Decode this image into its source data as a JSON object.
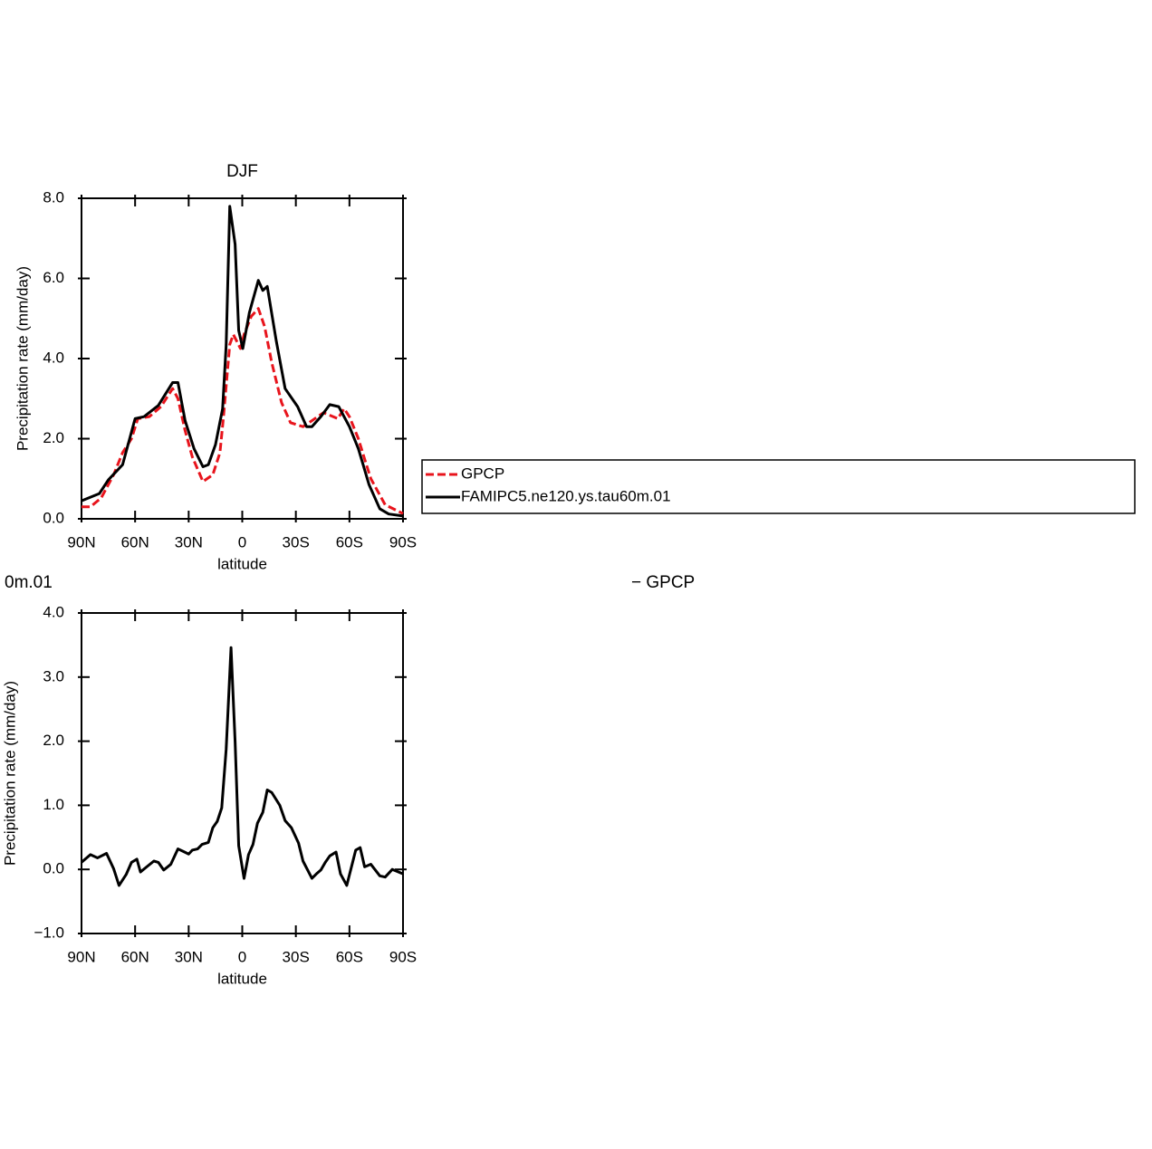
{
  "chart_data": [
    {
      "type": "line",
      "title": "DJF",
      "xlabel": "latitude",
      "ylabel": "Precipitation rate (mm/day)",
      "xlim": [
        90,
        -90
      ],
      "ylim": [
        0,
        8
      ],
      "xticks": [
        {
          "value": 90,
          "label": "90N"
        },
        {
          "value": 60,
          "label": "60N"
        },
        {
          "value": 30,
          "label": "30N"
        },
        0,
        {
          "value": -30,
          "label": "30S"
        },
        {
          "value": -60,
          "label": "60S"
        },
        {
          "value": -90,
          "label": "90S"
        }
      ],
      "yticks": [
        {
          "value": 0,
          "label": "0.0"
        },
        {
          "value": 2,
          "label": "2.0"
        },
        {
          "value": 4,
          "label": "4.0"
        },
        {
          "value": 6,
          "label": "6.0"
        },
        {
          "value": 8,
          "label": "8.0"
        }
      ],
      "grid": false,
      "legend": "right",
      "series": [
        {
          "name": "GPCP",
          "color": "#e8141c",
          "dashed": true,
          "x": [
            90,
            85,
            79,
            72,
            67,
            62,
            58.5,
            52,
            45.5,
            39,
            36,
            32,
            28,
            22,
            16.5,
            12.5,
            10.5,
            7,
            5,
            1,
            -1,
            -5,
            -9,
            -12.5,
            -16.5,
            -22,
            -27,
            -34,
            -39,
            -45.5,
            -53.5,
            -57,
            -60,
            -65,
            -69,
            -72,
            -80,
            -90
          ],
          "values": [
            0.3,
            0.3,
            0.52,
            1.1,
            1.65,
            2.0,
            2.5,
            2.55,
            2.8,
            3.25,
            3.0,
            2.2,
            1.55,
            0.93,
            1.1,
            1.65,
            2.55,
            4.35,
            4.6,
            4.25,
            4.6,
            5.05,
            5.25,
            4.8,
            3.9,
            2.9,
            2.4,
            2.3,
            2.45,
            2.65,
            2.5,
            2.75,
            2.55,
            2.0,
            1.42,
            1.0,
            0.35,
            0.13
          ]
        },
        {
          "name": "FAMIPC5.ne120.ys.tau60m.01",
          "color": "#000000",
          "dashed": false,
          "x": [
            90,
            80,
            75,
            67,
            60,
            55,
            47,
            39,
            36,
            32,
            27,
            22,
            19,
            15,
            11,
            9,
            7,
            4,
            2,
            -0.3,
            -4,
            -9,
            -11.5,
            -14,
            -19,
            -24,
            -31,
            -36,
            -39,
            -44,
            -49,
            -54,
            -60,
            -65,
            -71,
            -77,
            -82,
            -90
          ],
          "values": [
            0.45,
            0.63,
            0.97,
            1.35,
            2.5,
            2.55,
            2.83,
            3.4,
            3.4,
            2.45,
            1.75,
            1.3,
            1.35,
            1.85,
            2.75,
            4.35,
            7.8,
            6.85,
            4.7,
            4.25,
            5.15,
            5.95,
            5.7,
            5.8,
            4.45,
            3.25,
            2.8,
            2.3,
            2.3,
            2.55,
            2.85,
            2.8,
            2.3,
            1.75,
            0.85,
            0.25,
            0.12,
            0.07
          ]
        }
      ]
    },
    {
      "type": "line",
      "title_fragments": [
        "0m.01",
        "− GPCP"
      ],
      "xlabel": "latitude",
      "ylabel": "Precipitation rate (mm/day)",
      "xlim": [
        90,
        -90
      ],
      "ylim": [
        -1,
        4
      ],
      "xticks": [
        {
          "value": 90,
          "label": "90N"
        },
        {
          "value": 60,
          "label": "60N"
        },
        {
          "value": 30,
          "label": "30N"
        },
        0,
        {
          "value": -30,
          "label": "30S"
        },
        {
          "value": -60,
          "label": "60S"
        },
        {
          "value": -90,
          "label": "90S"
        }
      ],
      "yticks": [
        {
          "value": -1,
          "label": "−1.0"
        },
        {
          "value": 0,
          "label": "0.0"
        },
        {
          "value": 1,
          "label": "1.0"
        },
        {
          "value": 2,
          "label": "2.0"
        },
        {
          "value": 3,
          "label": "3.0"
        },
        {
          "value": 4,
          "label": "4.0"
        }
      ],
      "grid": false,
      "series": [
        {
          "color": "#000000",
          "dashed": false,
          "x": [
            90,
            85,
            81,
            76,
            72,
            69,
            65,
            62,
            59,
            57,
            53.5,
            49.5,
            47,
            44,
            40,
            36,
            33,
            30,
            28,
            25,
            22.5,
            19,
            16.5,
            14,
            11.5,
            9,
            6.3,
            4,
            2,
            -1,
            -3.5,
            -6,
            -8.5,
            -11.5,
            -14,
            -16.5,
            -21,
            -24,
            -27.5,
            -31.5,
            -34,
            -39,
            -41.5,
            -44,
            -46.5,
            -49,
            -52.5,
            -55,
            -58.5,
            -63.5,
            -66,
            -68.5,
            -72,
            -77,
            -80,
            -84,
            -90
          ],
          "values": [
            0.11,
            0.23,
            0.18,
            0.25,
            0.01,
            -0.25,
            -0.08,
            0.11,
            0.16,
            -0.04,
            0.04,
            0.13,
            0.11,
            -0.01,
            0.08,
            0.32,
            0.28,
            0.24,
            0.3,
            0.32,
            0.39,
            0.42,
            0.65,
            0.75,
            0.96,
            1.88,
            3.46,
            1.99,
            0.37,
            -0.14,
            0.23,
            0.39,
            0.72,
            0.89,
            1.24,
            1.2,
            1.0,
            0.76,
            0.65,
            0.41,
            0.13,
            -0.14,
            -0.07,
            -0.01,
            0.11,
            0.21,
            0.27,
            -0.07,
            -0.25,
            0.3,
            0.34,
            0.04,
            0.08,
            -0.1,
            -0.12,
            0,
            -0.07
          ]
        }
      ]
    }
  ]
}
